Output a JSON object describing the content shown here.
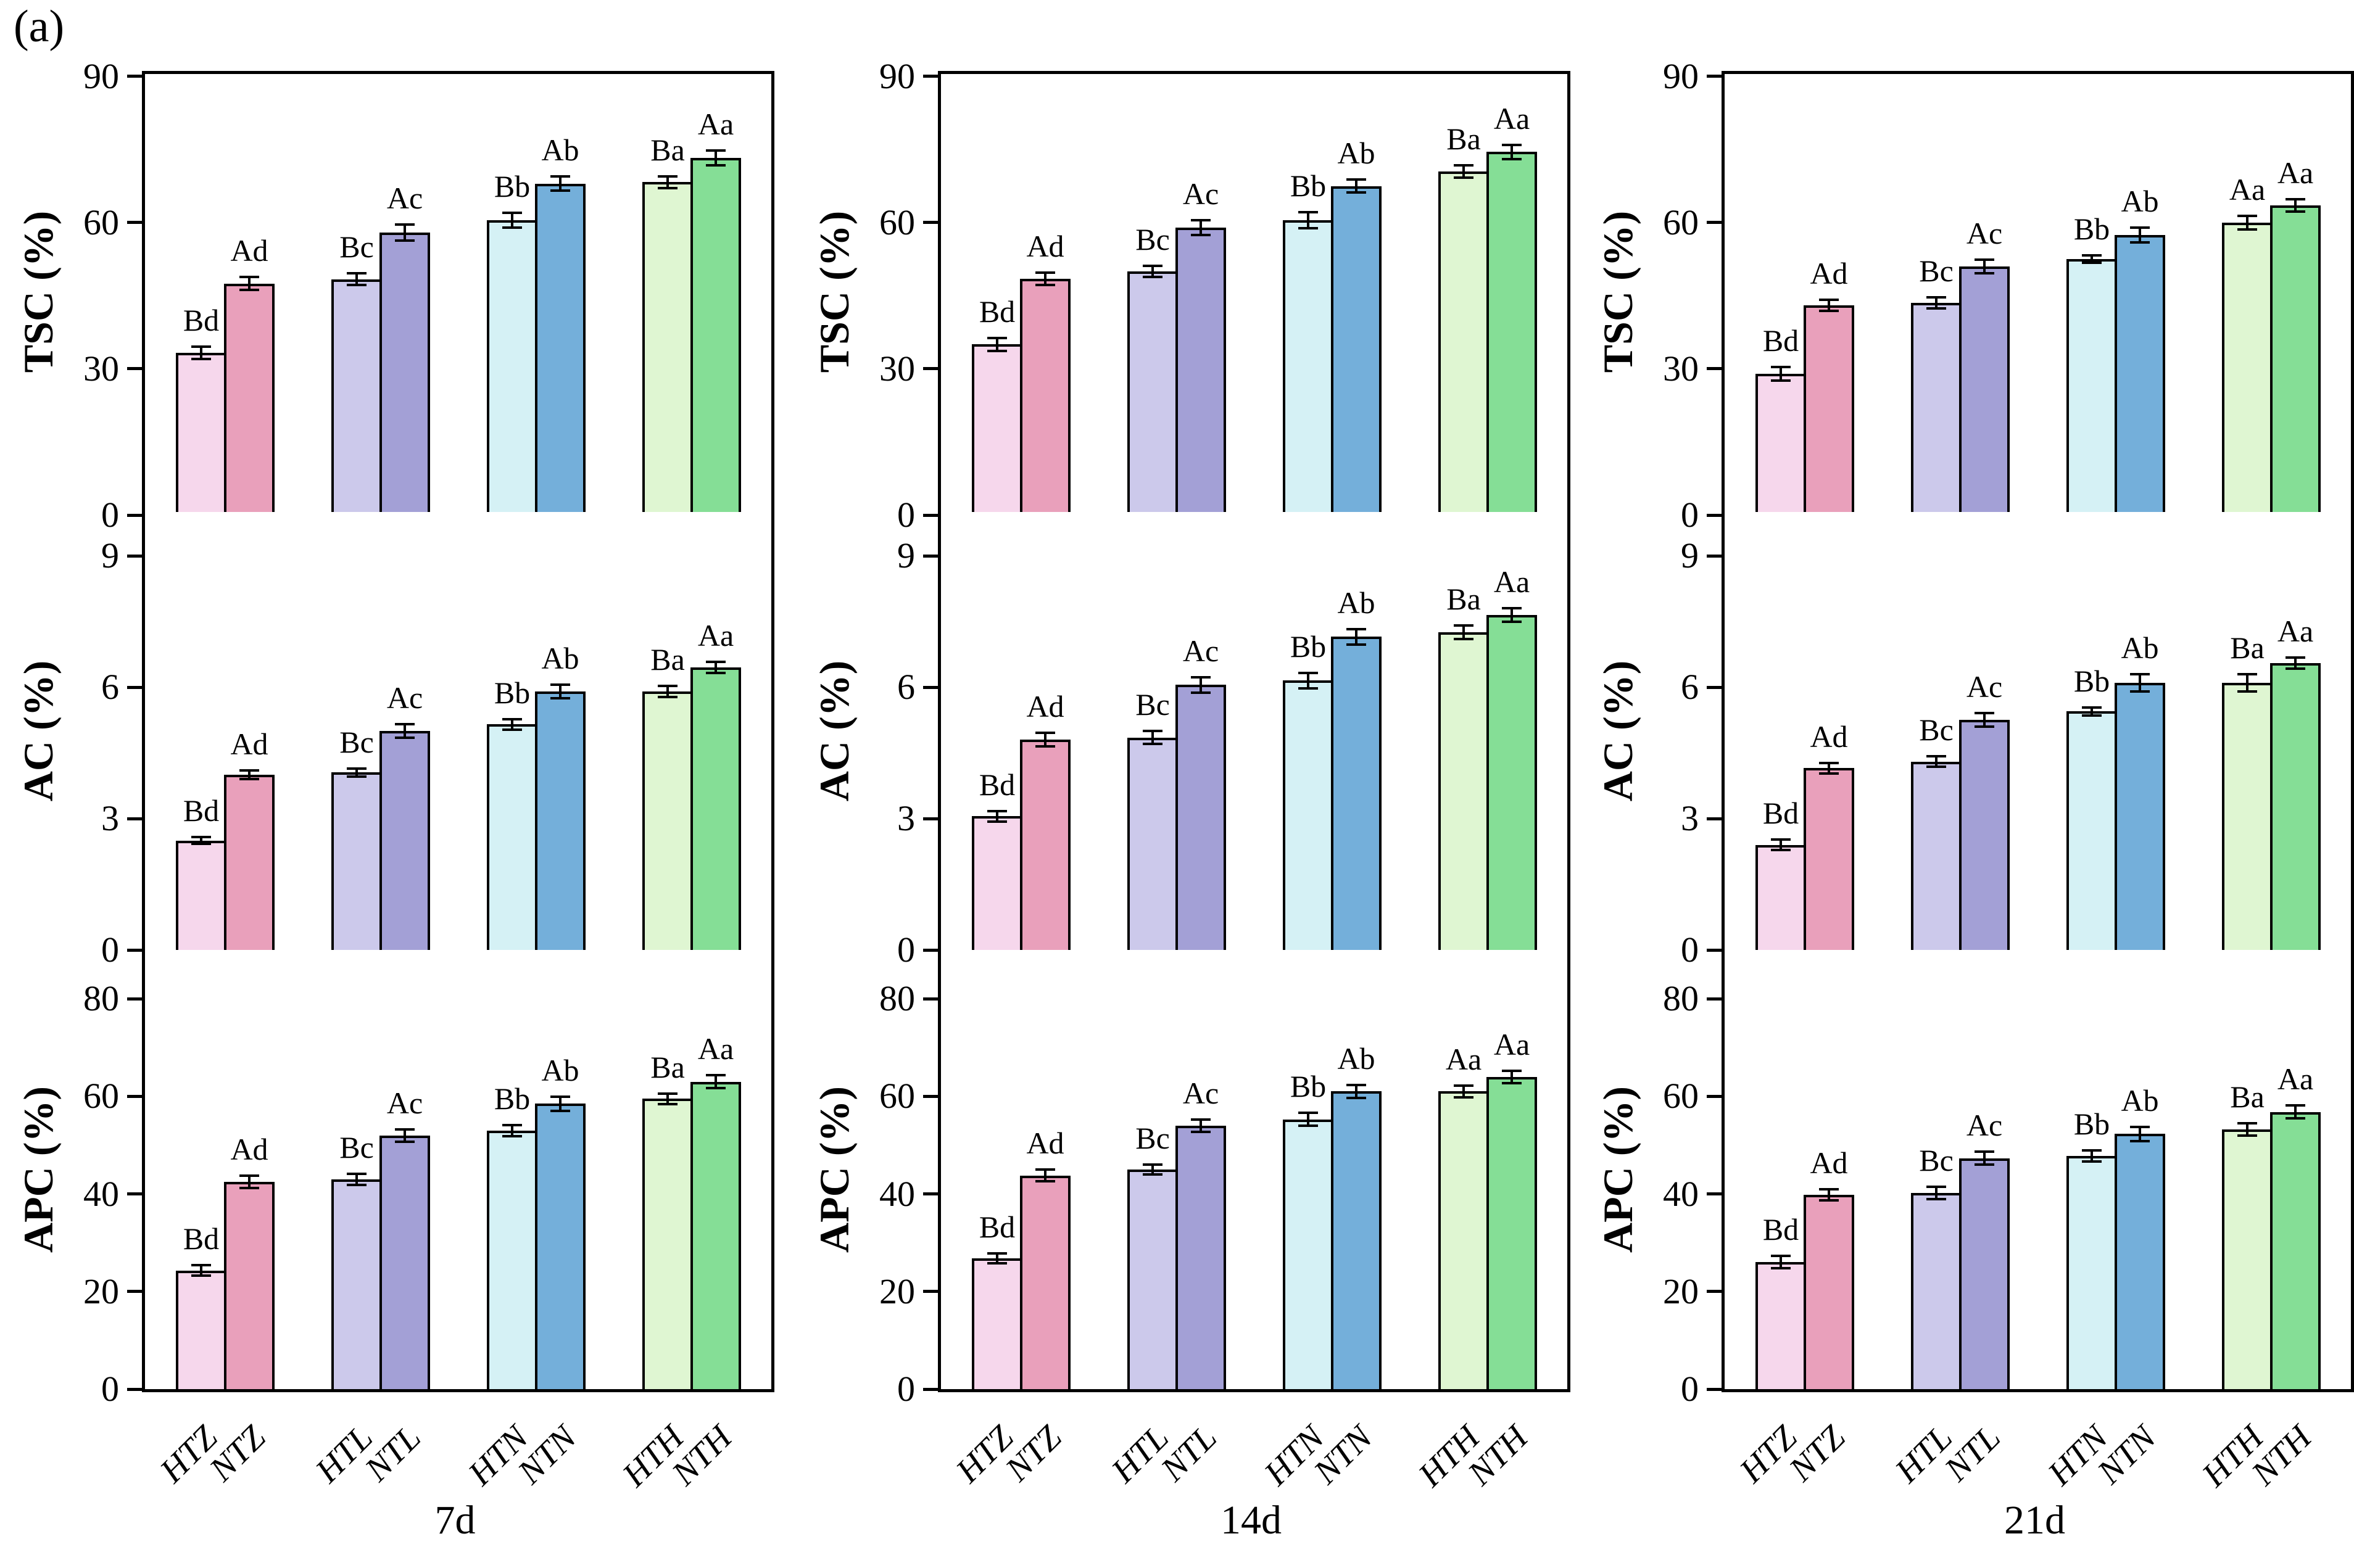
{
  "figure_label": "(a)",
  "categories": [
    "HTZ",
    "NTZ",
    "HTL",
    "NTL",
    "HTN",
    "NTN",
    "HTH",
    "NTH"
  ],
  "bar_colors": [
    "#f6d7ec",
    "#e9a0bb",
    "#ccc9eb",
    "#a3a0d6",
    "#d5f1f5",
    "#74afda",
    "#dff6d2",
    "#85de96"
  ],
  "time_groups": [
    "7d",
    "14d",
    "21d"
  ],
  "rows": [
    {
      "ylabel": "TSC (%)",
      "ticks": [
        0,
        30,
        60,
        90
      ],
      "ymax": 90.5
    },
    {
      "ylabel": "AC (%)",
      "ticks": [
        0,
        3,
        6,
        9
      ],
      "ymax": 10
    },
    {
      "ylabel": "APC (%)",
      "ticks": [
        0,
        20,
        40,
        60,
        80
      ],
      "ymax": 90
    }
  ],
  "chart_data": [
    {
      "type": "bar",
      "row": "TSC (%)",
      "group": "7d",
      "ylim": [
        0,
        90
      ],
      "categories": [
        "HTZ",
        "NTZ",
        "HTL",
        "NTL",
        "HTN",
        "NTN",
        "HTH",
        "NTH"
      ],
      "values": [
        33.3,
        47.5,
        48.4,
        58.0,
        60.5,
        68.0,
        68.3,
        73.3
      ],
      "errors": [
        1.5,
        1.6,
        1.5,
        1.9,
        1.8,
        1.7,
        1.5,
        1.8
      ],
      "sig_labels": [
        "Bd",
        "Ad",
        "Bc",
        "Ac",
        "Bb",
        "Ab",
        "Ba",
        "Aa"
      ]
    },
    {
      "type": "bar",
      "row": "TSC (%)",
      "group": "14d",
      "ylim": [
        0,
        90
      ],
      "categories": [
        "HTZ",
        "NTZ",
        "HTL",
        "NTL",
        "HTN",
        "NTN",
        "HTH",
        "NTH"
      ],
      "values": [
        35.0,
        48.5,
        50.0,
        59.0,
        60.5,
        67.5,
        70.5,
        74.5
      ],
      "errors": [
        1.6,
        1.5,
        1.4,
        1.8,
        1.9,
        1.6,
        1.5,
        1.7
      ],
      "sig_labels": [
        "Bd",
        "Ad",
        "Bc",
        "Ac",
        "Bb",
        "Ab",
        "Ba",
        "Aa"
      ]
    },
    {
      "type": "bar",
      "row": "TSC (%)",
      "group": "21d",
      "ylim": [
        0,
        90
      ],
      "categories": [
        "HTZ",
        "NTZ",
        "HTL",
        "NTL",
        "HTN",
        "NTN",
        "HTH",
        "NTH"
      ],
      "values": [
        29.0,
        43.0,
        43.5,
        51.0,
        52.5,
        57.5,
        60.0,
        63.5
      ],
      "errors": [
        1.6,
        1.4,
        1.4,
        1.6,
        1.0,
        1.8,
        1.6,
        1.5
      ],
      "sig_labels": [
        "Bd",
        "Ad",
        "Bc",
        "Ac",
        "Bb",
        "Ab",
        "Aa",
        "Aa"
      ]
    },
    {
      "type": "bar",
      "row": "AC (%)",
      "group": "7d",
      "ylim": [
        0,
        9
      ],
      "categories": [
        "HTZ",
        "NTZ",
        "HTL",
        "NTL",
        "HTN",
        "NTN",
        "HTH",
        "NTH"
      ],
      "values": [
        2.5,
        4.0,
        4.05,
        5.0,
        5.15,
        5.9,
        5.9,
        6.45
      ],
      "errors": [
        0.1,
        0.12,
        0.12,
        0.18,
        0.15,
        0.18,
        0.15,
        0.15
      ],
      "sig_labels": [
        "Bd",
        "Ad",
        "Bc",
        "Ac",
        "Bb",
        "Ab",
        "Ba",
        "Aa"
      ]
    },
    {
      "type": "bar",
      "row": "AC (%)",
      "group": "14d",
      "ylim": [
        0,
        9
      ],
      "categories": [
        "HTZ",
        "NTZ",
        "HTL",
        "NTL",
        "HTN",
        "NTN",
        "HTH",
        "NTH"
      ],
      "values": [
        3.05,
        4.8,
        4.85,
        6.05,
        6.15,
        7.15,
        7.25,
        7.65
      ],
      "errors": [
        0.15,
        0.18,
        0.18,
        0.2,
        0.2,
        0.2,
        0.18,
        0.18
      ],
      "sig_labels": [
        "Bd",
        "Ad",
        "Bc",
        "Ac",
        "Bb",
        "Ab",
        "Ba",
        "Aa"
      ]
    },
    {
      "type": "bar",
      "row": "AC (%)",
      "group": "21d",
      "ylim": [
        0,
        9
      ],
      "categories": [
        "HTZ",
        "NTZ",
        "HTL",
        "NTL",
        "HTN",
        "NTN",
        "HTH",
        "NTH"
      ],
      "values": [
        2.4,
        4.15,
        4.3,
        5.25,
        5.45,
        6.1,
        6.1,
        6.55
      ],
      "errors": [
        0.15,
        0.15,
        0.15,
        0.18,
        0.12,
        0.22,
        0.22,
        0.15
      ],
      "sig_labels": [
        "Bd",
        "Ad",
        "Bc",
        "Ac",
        "Bb",
        "Ab",
        "Ba",
        "Aa"
      ]
    },
    {
      "type": "bar",
      "row": "APC (%)",
      "group": "7d",
      "ylim": [
        0,
        80
      ],
      "categories": [
        "HTZ",
        "NTZ",
        "HTL",
        "NTL",
        "HTN",
        "NTN",
        "HTH",
        "NTH"
      ],
      "values": [
        24.3,
        42.5,
        43.0,
        52.0,
        53.0,
        58.5,
        59.5,
        63.0
      ],
      "errors": [
        1.3,
        1.5,
        1.4,
        1.5,
        1.4,
        1.7,
        1.3,
        1.6
      ],
      "sig_labels": [
        "Bd",
        "Ad",
        "Bc",
        "Ac",
        "Bb",
        "Ab",
        "Ba",
        "Aa"
      ]
    },
    {
      "type": "bar",
      "row": "APC (%)",
      "group": "14d",
      "ylim": [
        0,
        80
      ],
      "categories": [
        "HTZ",
        "NTZ",
        "HTL",
        "NTL",
        "HTN",
        "NTN",
        "HTH",
        "NTH"
      ],
      "values": [
        26.8,
        43.8,
        45.0,
        54.0,
        55.3,
        61.0,
        61.0,
        64.0
      ],
      "errors": [
        1.3,
        1.5,
        1.3,
        1.5,
        1.6,
        1.6,
        1.4,
        1.5
      ],
      "sig_labels": [
        "Bd",
        "Ad",
        "Bc",
        "Ac",
        "Bb",
        "Ab",
        "Aa",
        "Aa"
      ]
    },
    {
      "type": "bar",
      "row": "APC (%)",
      "group": "21d",
      "ylim": [
        0,
        80
      ],
      "categories": [
        "HTZ",
        "NTZ",
        "HTL",
        "NTL",
        "HTN",
        "NTN",
        "HTH",
        "NTH"
      ],
      "values": [
        26.0,
        39.8,
        40.2,
        47.3,
        47.8,
        52.3,
        53.2,
        56.8
      ],
      "errors": [
        1.5,
        1.4,
        1.5,
        1.6,
        1.4,
        1.7,
        1.5,
        1.6
      ],
      "sig_labels": [
        "Bd",
        "Ad",
        "Bc",
        "Ac",
        "Bb",
        "Ab",
        "Ba",
        "Aa"
      ]
    }
  ]
}
